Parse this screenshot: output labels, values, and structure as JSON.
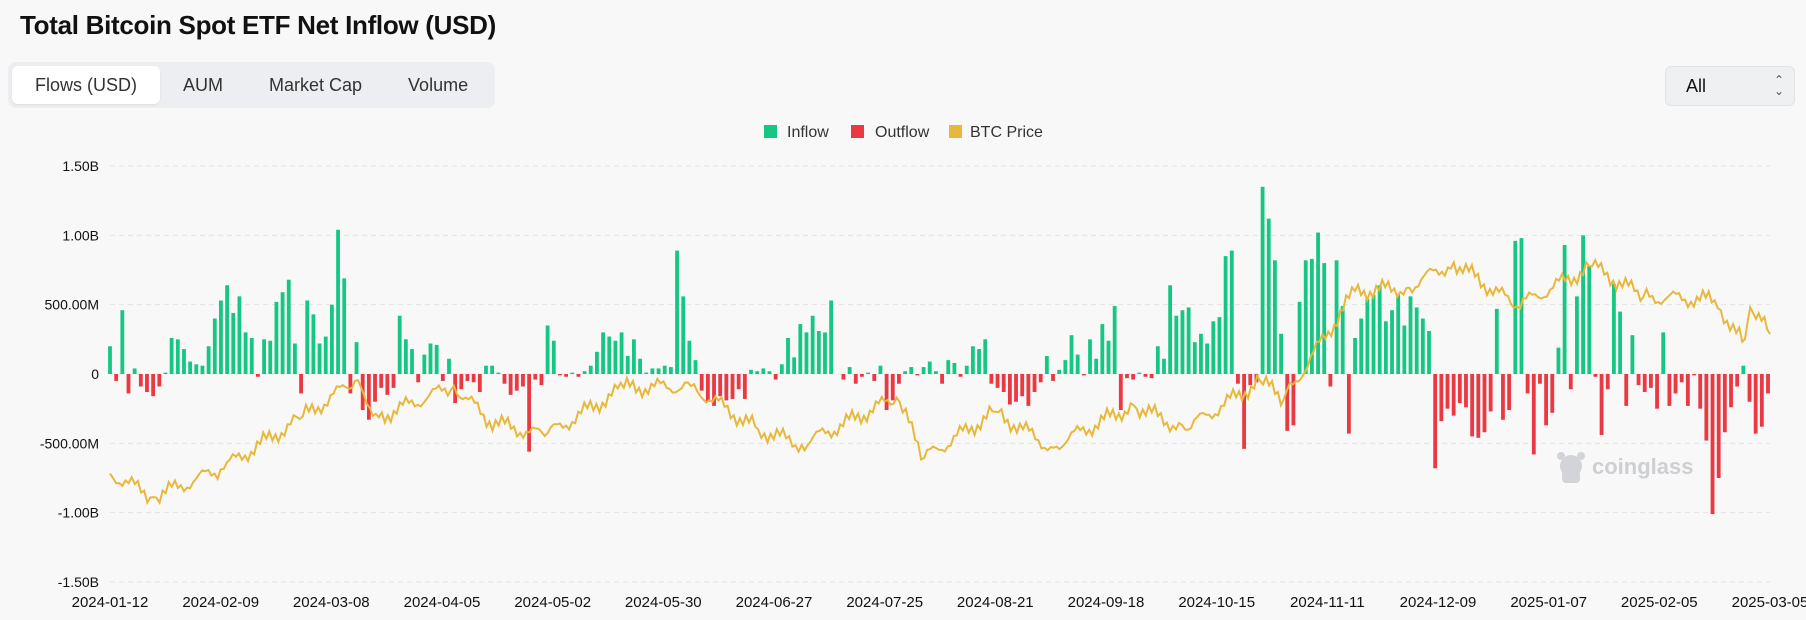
{
  "page": {
    "title": "Total Bitcoin Spot ETF Net Inflow (USD)"
  },
  "tabs": [
    {
      "label": "Flows (USD)",
      "active": true
    },
    {
      "label": "AUM",
      "active": false
    },
    {
      "label": "Market Cap",
      "active": false
    },
    {
      "label": "Volume",
      "active": false
    }
  ],
  "range_select": {
    "value": "All"
  },
  "watermark": "coinglass",
  "colors": {
    "inflow": "#16c784",
    "outflow": "#ea3943",
    "btc_price": "#e8b83c",
    "grid": "#e3e4e6"
  },
  "chart_data": {
    "type": "bar",
    "legend": [
      "Inflow",
      "Outflow",
      "BTC Price"
    ],
    "legend_position": "top-center",
    "grid": true,
    "ylim": [
      -1500000000,
      1500000000
    ],
    "y_ticks": [
      {
        "v": 1500000000,
        "label": "1.50B"
      },
      {
        "v": 1000000000,
        "label": "1.00B"
      },
      {
        "v": 500000000,
        "label": "500.00M"
      },
      {
        "v": 0,
        "label": "0"
      },
      {
        "v": -500000000,
        "label": "-500.00M"
      },
      {
        "v": -1000000000,
        "label": "-1.00B"
      },
      {
        "v": -1500000000,
        "label": "-1.50B"
      }
    ],
    "x_start": "2024-01-12",
    "x_end": "2025-03-07",
    "x_ticks": [
      "2024-01-12",
      "2024-02-09",
      "2024-03-08",
      "2024-04-05",
      "2024-05-02",
      "2024-05-30",
      "2024-06-27",
      "2024-07-25",
      "2024-08-21",
      "2024-09-18",
      "2024-10-15",
      "2024-11-11",
      "2024-12-09",
      "2025-01-07",
      "2025-02-05",
      "2025-03-05"
    ],
    "flows_usd_millions": [
      200,
      -50,
      460,
      -140,
      40,
      -90,
      -130,
      -160,
      -90,
      10,
      260,
      250,
      180,
      90,
      70,
      60,
      200,
      400,
      530,
      640,
      440,
      560,
      300,
      260,
      -20,
      250,
      240,
      520,
      590,
      680,
      220,
      -140,
      530,
      430,
      220,
      270,
      500,
      1040,
      690,
      -140,
      230,
      -260,
      -330,
      -200,
      -100,
      -150,
      -100,
      420,
      250,
      180,
      -60,
      140,
      220,
      210,
      -50,
      110,
      -210,
      -110,
      -50,
      -60,
      -130,
      60,
      60,
      10,
      -70,
      -150,
      -120,
      -90,
      -560,
      -40,
      -80,
      350,
      240,
      -10,
      -20,
      10,
      -20,
      20,
      60,
      160,
      300,
      270,
      240,
      300,
      130,
      250,
      110,
      10,
      40,
      40,
      60,
      50,
      890,
      560,
      240,
      100,
      -120,
      -200,
      -230,
      -160,
      -190,
      -180,
      -110,
      -180,
      30,
      20,
      40,
      20,
      -40,
      70,
      260,
      120,
      360,
      300,
      420,
      310,
      300,
      530,
      0,
      -40,
      50,
      -70,
      -20,
      10,
      -50,
      60,
      -260,
      -190,
      -70,
      20,
      50,
      -10,
      50,
      90,
      20,
      -70,
      100,
      80,
      -20,
      60,
      200,
      180,
      250,
      -70,
      -100,
      -130,
      -220,
      -200,
      -160,
      -230,
      -130,
      -60,
      130,
      -50,
      30,
      100,
      280,
      140,
      -10,
      250,
      110,
      360,
      240,
      490,
      -260,
      -30,
      -40,
      10,
      -20,
      -30,
      200,
      110,
      640,
      420,
      460,
      480,
      230,
      290,
      220,
      380,
      410,
      850,
      890,
      -70,
      -540,
      -80,
      -60,
      1350,
      1120,
      820,
      290,
      -410,
      -370,
      520,
      820,
      830,
      1020,
      800,
      -90,
      820,
      490,
      -430,
      260,
      400,
      540,
      570,
      640,
      380,
      460,
      570,
      350,
      560,
      480,
      400,
      310,
      -680,
      -340,
      -250,
      -300,
      -210,
      -240,
      -450,
      -460,
      -420,
      -270,
      470,
      -330,
      -260,
      960,
      980,
      -140,
      -580,
      -70,
      -370,
      -280,
      190,
      930,
      -110,
      560,
      1000,
      780,
      -20,
      -440,
      -110,
      650,
      450,
      -230,
      280,
      -80,
      -130,
      -100,
      -250,
      300,
      -230,
      -140,
      -60,
      -230,
      -10,
      -250,
      -480,
      -1010,
      -750,
      -420,
      -240,
      -90,
      60,
      -200,
      -430,
      -380,
      -140
    ],
    "btc_price_usd": [
      {
        "x": "2024-01-12",
        "y": 46300
      },
      {
        "x": "2024-01-23",
        "y": 39500
      },
      {
        "x": "2024-02-09",
        "y": 47500
      },
      {
        "x": "2024-02-29",
        "y": 62000
      },
      {
        "x": "2024-03-14",
        "y": 73000
      },
      {
        "x": "2024-03-20",
        "y": 62500
      },
      {
        "x": "2024-04-08",
        "y": 71600
      },
      {
        "x": "2024-04-17",
        "y": 61300
      },
      {
        "x": "2024-05-01",
        "y": 57100
      },
      {
        "x": "2024-05-21",
        "y": 71000
      },
      {
        "x": "2024-06-07",
        "y": 71500
      },
      {
        "x": "2024-06-24",
        "y": 59000
      },
      {
        "x": "2024-07-05",
        "y": 54600
      },
      {
        "x": "2024-07-29",
        "y": 68200
      },
      {
        "x": "2024-08-05",
        "y": 50800
      },
      {
        "x": "2024-08-23",
        "y": 64100
      },
      {
        "x": "2024-09-06",
        "y": 53900
      },
      {
        "x": "2024-09-27",
        "y": 66000
      },
      {
        "x": "2024-10-10",
        "y": 59000
      },
      {
        "x": "2024-10-29",
        "y": 73000
      },
      {
        "x": "2024-11-04",
        "y": 67800
      },
      {
        "x": "2024-11-22",
        "y": 98900
      },
      {
        "x": "2024-12-05",
        "y": 99800
      },
      {
        "x": "2024-12-17",
        "y": 107200
      },
      {
        "x": "2025-01-02",
        "y": 94500
      },
      {
        "x": "2025-01-21",
        "y": 106100
      },
      {
        "x": "2025-02-03",
        "y": 97300
      },
      {
        "x": "2025-02-21",
        "y": 96300
      },
      {
        "x": "2025-02-28",
        "y": 84300
      },
      {
        "x": "2025-03-02",
        "y": 94200
      },
      {
        "x": "2025-03-07",
        "y": 86500
      }
    ]
  }
}
